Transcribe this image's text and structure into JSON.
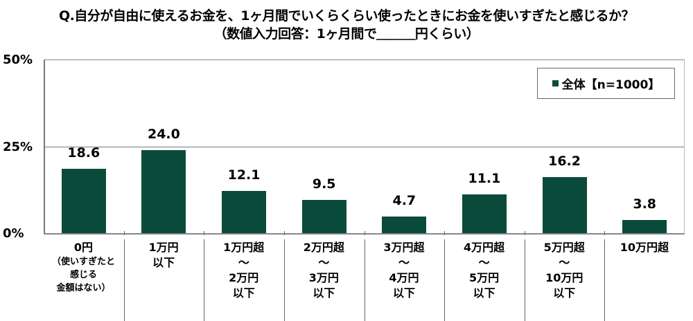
{
  "title": {
    "line1": "Q.自分が自由に使えるお金を、1ヶ月間でいくらくらい使ったときにお金を使いすぎたと感じるか？",
    "line2": "（数値入力回答：1ヶ月間で＿＿＿円くらい）"
  },
  "legend": {
    "label": "全体【n=1000】",
    "color": "#0a4b3b"
  },
  "y_ticks": [
    "50%",
    "25%",
    "0%"
  ],
  "categories": [
    {
      "main": "0円",
      "sub": "（使いすぎたと\n感じる\n金額はない）"
    },
    {
      "main": "1万円\n以下",
      "sub": ""
    },
    {
      "main": "1万円超\n～\n2万円\n以下",
      "sub": ""
    },
    {
      "main": "2万円超\n～\n3万円\n以下",
      "sub": ""
    },
    {
      "main": "3万円超\n～\n4万円\n以下",
      "sub": ""
    },
    {
      "main": "4万円超\n～\n5万円\n以下",
      "sub": ""
    },
    {
      "main": "5万円超\n～\n10万円\n以下",
      "sub": ""
    },
    {
      "main": "10万円超",
      "sub": ""
    }
  ],
  "value_labels": [
    "18.6",
    "24.0",
    "12.1",
    "9.5",
    "4.7",
    "11.1",
    "16.2",
    "3.8"
  ],
  "chart_data": {
    "type": "bar",
    "title": "Q.自分が自由に使えるお金を、1ヶ月間でいくらくらい使ったときにお金を使いすぎたと感じるか？（数値入力回答：1ヶ月間で＿＿＿円くらい）",
    "categories": [
      "0円（使いすぎたと感じる金額はない）",
      "1万円以下",
      "1万円超～2万円以下",
      "2万円超～3万円以下",
      "3万円超～4万円以下",
      "4万円超～5万円以下",
      "5万円超～10万円以下",
      "10万円超"
    ],
    "series": [
      {
        "name": "全体【n=1000】",
        "values": [
          18.6,
          24.0,
          12.1,
          9.5,
          4.7,
          11.1,
          16.2,
          3.8
        ],
        "color": "#0a4b3b"
      }
    ],
    "xlabel": "",
    "ylabel": "",
    "ylim": [
      0,
      50
    ],
    "yticks": [
      "0%",
      "25%",
      "50%"
    ],
    "grid": true,
    "legend_position": "top-right"
  }
}
